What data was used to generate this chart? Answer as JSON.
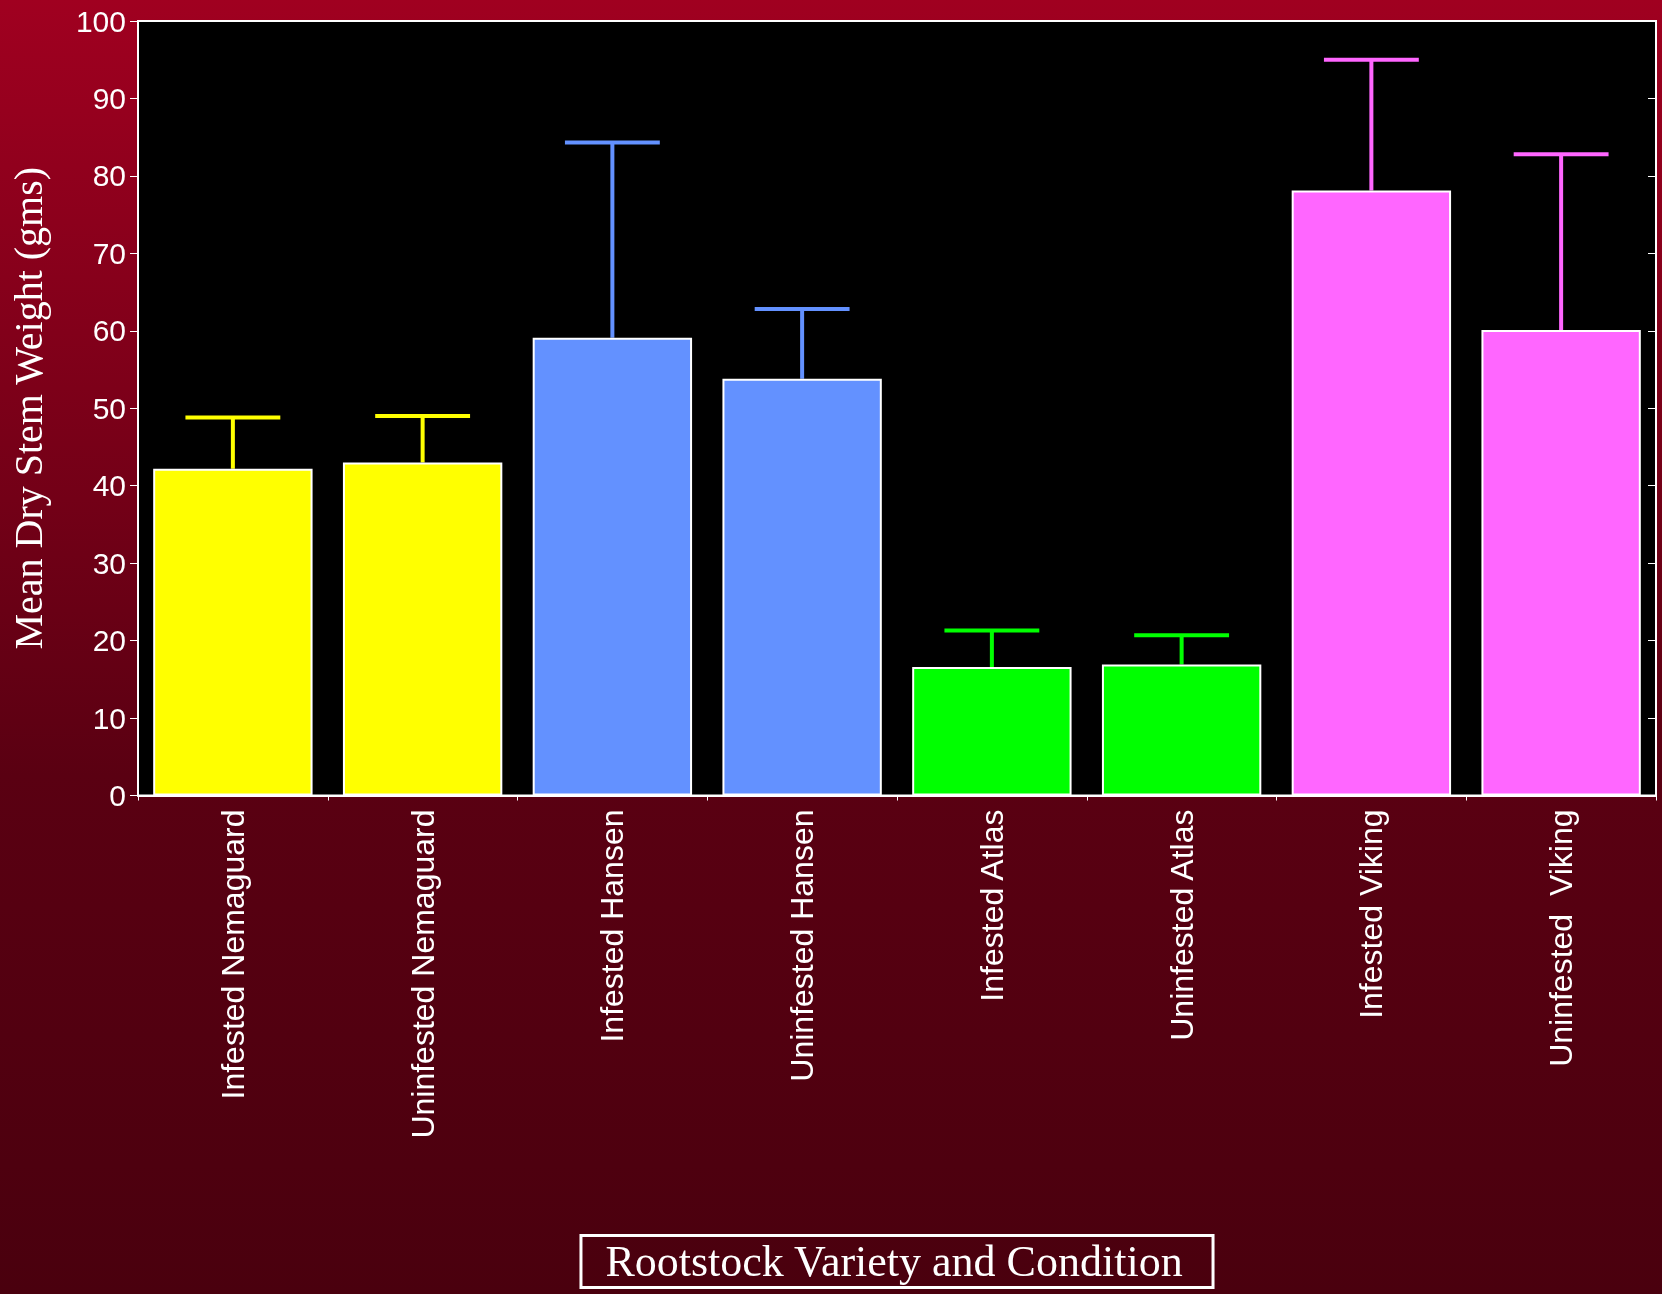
{
  "chart_data": {
    "type": "bar",
    "xlabel": "Rootstock Variety and Condition",
    "ylabel": "Mean Dry Stem Weight (gms)",
    "categories": [
      "Infested Nemaguard",
      "Uninfested Nemaguard",
      "Infested Hansen",
      "Uninfested Hansen",
      "Infested Atlas",
      "Uninfested Atlas",
      "Infested Viking",
      "Uninfested  Viking"
    ],
    "values": [
      42.2,
      43.0,
      59.1,
      53.8,
      16.6,
      16.9,
      78.1,
      60.1
    ],
    "colors": [
      "#ffff00",
      "#ffff00",
      "#6391ff",
      "#6391ff",
      "#00ff00",
      "#00ff00",
      "#ff66ff",
      "#ff66ff"
    ],
    "errors": [
      [
        42.2,
        48.8
      ],
      [
        43.0,
        49.0
      ],
      [
        59.1,
        84.3
      ],
      [
        53.8,
        62.8
      ],
      [
        16.6,
        21.3
      ],
      [
        16.9,
        20.7
      ],
      [
        78.1,
        95.0
      ],
      [
        60.1,
        82.8
      ]
    ],
    "ylim": [
      0,
      100
    ],
    "yticks": [
      0,
      10,
      20,
      30,
      40,
      50,
      60,
      70,
      80,
      90,
      100
    ],
    "grid": false
  }
}
